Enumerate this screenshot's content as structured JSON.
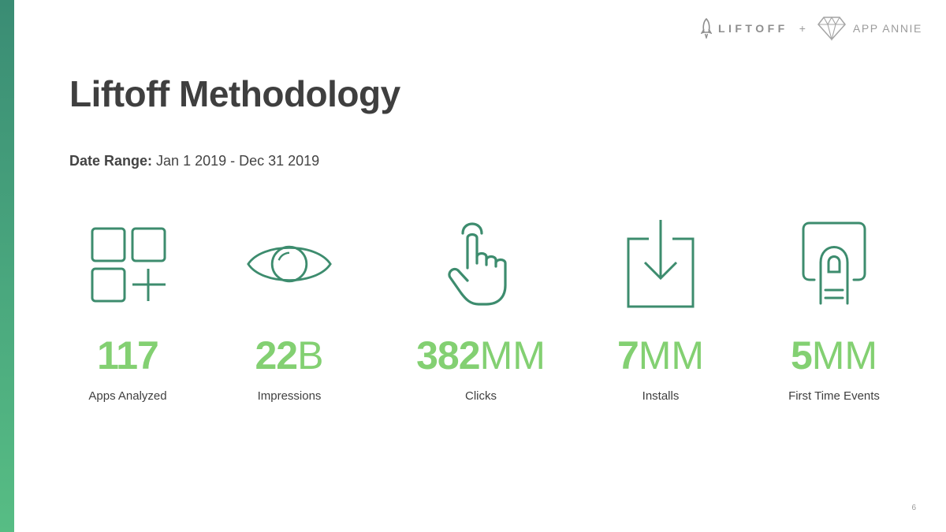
{
  "header": {
    "brand_liftoff": "LIFTOFF",
    "plus": "+",
    "brand_appannie": "APP ANNIE"
  },
  "title": "Liftoff Methodology",
  "date_range": {
    "label": "Date Range:",
    "value": "Jan 1 2019 - Dec 31 2019"
  },
  "stats": [
    {
      "icon": "apps-grid-icon",
      "number": "117",
      "unit": "",
      "label": "Apps Analyzed"
    },
    {
      "icon": "eye-icon",
      "number": "22",
      "unit": "B",
      "label": "Impressions"
    },
    {
      "icon": "pointing-hand-icon",
      "number": "382",
      "unit": "MM",
      "label": "Clicks"
    },
    {
      "icon": "download-icon",
      "number": "7",
      "unit": "MM",
      "label": "Installs"
    },
    {
      "icon": "fingerprint-tap-icon",
      "number": "5",
      "unit": "MM",
      "label": "First Time Events"
    }
  ],
  "page_number": "6",
  "colors": {
    "icon_stroke": "#3d8c6e",
    "stat_value": "#83d072",
    "title": "#3f3f3f",
    "side_bar_top": "#3a8c74",
    "side_bar_bottom": "#57bd84"
  }
}
